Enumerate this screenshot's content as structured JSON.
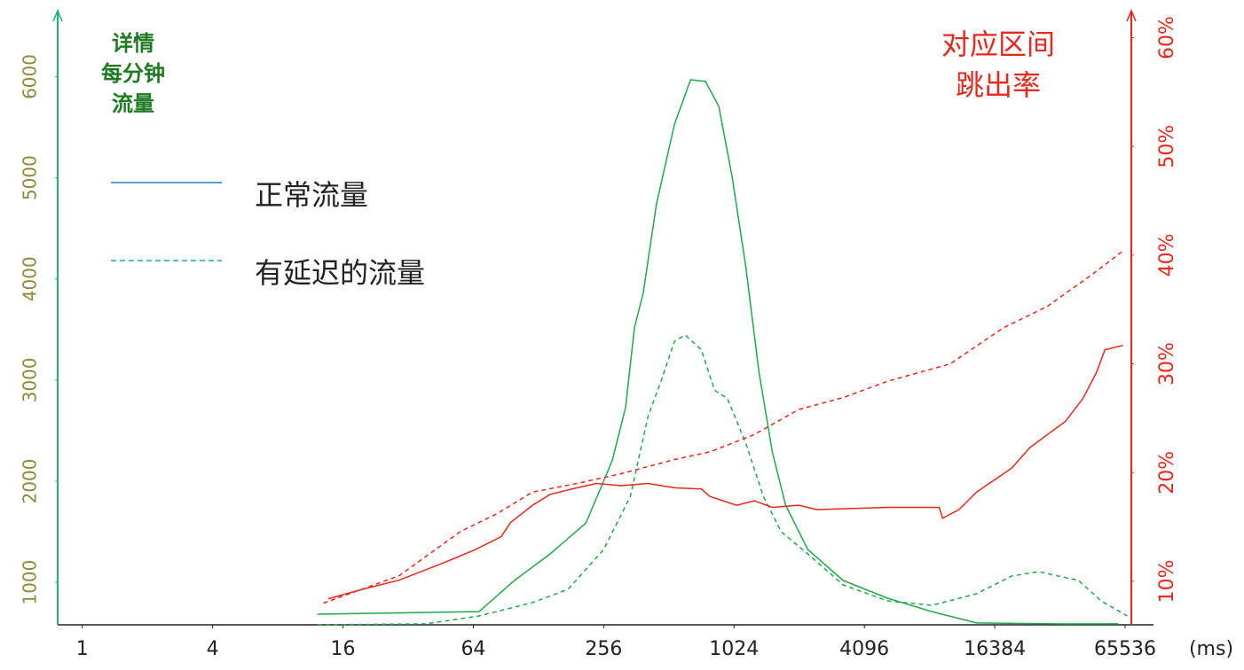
{
  "chart_data": {
    "type": "line",
    "left_title": [
      "详情",
      "每分钟",
      "流量"
    ],
    "right_title": [
      "对应区间",
      "跳出率"
    ],
    "x_unit": "(ms)",
    "log_x": true,
    "xlim": [
      0.77,
      70000
    ],
    "xticks": [
      1,
      4,
      16,
      64,
      256,
      1024,
      4096,
      16384,
      65536
    ],
    "ylim": [
      580,
      6600
    ],
    "yticks": [
      1000,
      2000,
      3000,
      4000,
      5000,
      6000
    ],
    "y2lim": [
      6,
      62
    ],
    "y2ticks": [
      {
        "value": 10,
        "label": "10%"
      },
      {
        "value": 20,
        "label": "20%"
      },
      {
        "value": 30,
        "label": "30%"
      },
      {
        "value": 40,
        "label": "40%"
      },
      {
        "value": 50,
        "label": "50%"
      },
      {
        "value": 60,
        "label": "60%"
      }
    ],
    "left_axis_color": "#1fb36a",
    "left_tick_color": "#8c8a3c",
    "left_title_color": "#1e7b22",
    "right_color": "#e8271d",
    "legend": [
      {
        "label": "正常流量",
        "color": "#2f7bbf",
        "dashed": false
      },
      {
        "label": "有延迟的流量",
        "color": "#2f9fbf",
        "dashed": true
      }
    ],
    "series": [
      {
        "color": "#20a94a",
        "dashed": false,
        "axis": "y",
        "x": [
          12.2,
          68,
          99,
          145,
          212,
          280,
          323,
          355,
          390,
          449,
          544,
          645,
          756,
          871,
          1004,
          1159,
          1335,
          1538,
          1772,
          2243,
          3270,
          5240,
          8400,
          13500,
          34700,
          61000
        ],
        "values": [
          685,
          711,
          1018,
          1281,
          1588,
          2201,
          2727,
          3516,
          3866,
          4742,
          5531,
          5969,
          5952,
          5706,
          5005,
          4129,
          3077,
          2289,
          1763,
          1325,
          1018,
          843,
          711,
          598,
          589,
          590
        ]
      },
      {
        "color": "#20a94a",
        "dashed": true,
        "axis": "y",
        "x": [
          12.2,
          38.6,
          68,
          120,
          175,
          256,
          340,
          410,
          471,
          544,
          609,
          723,
          832,
          955,
          1159,
          1399,
          1690,
          2243,
          3270,
          5240,
          8400,
          13500,
          19600,
          26100,
          40000,
          50700,
          67000
        ],
        "values": [
          580,
          590,
          668,
          800,
          930,
          1325,
          1850,
          2640,
          2990,
          3384,
          3445,
          3300,
          2900,
          2815,
          2380,
          1850,
          1500,
          1281,
          974,
          817,
          773,
          887,
          1062,
          1106,
          1018,
          817,
          668
        ]
      },
      {
        "color": "#e8271d",
        "dashed": false,
        "axis": "y2",
        "x": [
          13.7,
          20,
          29,
          46.7,
          65,
          86,
          95,
          120,
          145,
          193,
          237,
          308,
          410,
          544,
          723,
          792,
          1053,
          1270,
          1538,
          2035,
          2470,
          5240,
          9080,
          9410,
          11200,
          13500,
          19600,
          23800,
          28700,
          34700,
          41800,
          48300,
          52900,
          64200
        ],
        "values": [
          8.4,
          9.3,
          10.1,
          11.7,
          12.9,
          14.1,
          15.4,
          17.0,
          18.0,
          18.6,
          19.0,
          18.8,
          19.0,
          18.6,
          18.5,
          17.8,
          17.0,
          17.4,
          16.8,
          17.0,
          16.6,
          16.8,
          16.8,
          15.8,
          16.6,
          18.2,
          20.4,
          22.3,
          23.5,
          24.7,
          26.8,
          29.2,
          31.3,
          31.7
        ]
      },
      {
        "color": "#e8271d",
        "dashed": true,
        "axis": "y2",
        "x": [
          13,
          29,
          56,
          82,
          120,
          193,
          308,
          544,
          792,
          1270,
          2035,
          3270,
          5240,
          10200,
          17900,
          28700,
          46000,
          64200
        ],
        "values": [
          8.0,
          10.5,
          14.6,
          16.2,
          18.2,
          19.0,
          19.9,
          21.2,
          21.9,
          23.5,
          25.8,
          26.9,
          28.4,
          30.0,
          33.3,
          35.3,
          38.2,
          40.4
        ]
      }
    ]
  }
}
